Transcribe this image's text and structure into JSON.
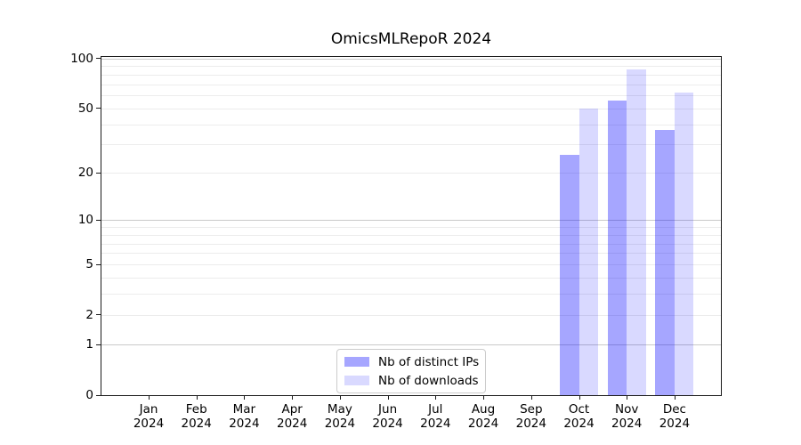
{
  "chart_data": {
    "type": "bar",
    "title": "OmicsMLRepoR 2024",
    "categories": [
      "Jan",
      "Feb",
      "Mar",
      "Apr",
      "May",
      "Jun",
      "Jul",
      "Aug",
      "Sep",
      "Oct",
      "Nov",
      "Dec"
    ],
    "x_sublabel": "2024",
    "series": [
      {
        "name": "Nb of distinct IPs",
        "color": "rgba(0,0,255,0.35)",
        "color_on_white": "#a6a6ff",
        "values": [
          null,
          null,
          null,
          null,
          null,
          null,
          null,
          null,
          null,
          26,
          56,
          37
        ]
      },
      {
        "name": "Nb of downloads",
        "color": "rgba(0,0,255,0.15)",
        "color_on_white": "#d9d9ff",
        "values": [
          null,
          null,
          null,
          null,
          null,
          null,
          null,
          null,
          null,
          50,
          86,
          62
        ]
      }
    ],
    "yscale": "log1p",
    "ylim": [
      0,
      103
    ],
    "y_tick_labels": [
      0,
      1,
      2,
      5,
      10,
      20,
      50,
      100
    ],
    "grid_major": [
      1,
      10,
      100
    ],
    "grid_minor": [
      2,
      3,
      4,
      5,
      6,
      7,
      8,
      9,
      20,
      30,
      40,
      50,
      60,
      70,
      80,
      90
    ],
    "grid": true,
    "legend_position": "lower center",
    "xlabel": "",
    "ylabel": ""
  },
  "colors": {
    "background": "#ffffff",
    "spine": "#1a1a1a",
    "major_grid": "#c9c9c9",
    "minor_grid": "#ececec",
    "text": "#000000",
    "legend_border": "#cccccc"
  }
}
